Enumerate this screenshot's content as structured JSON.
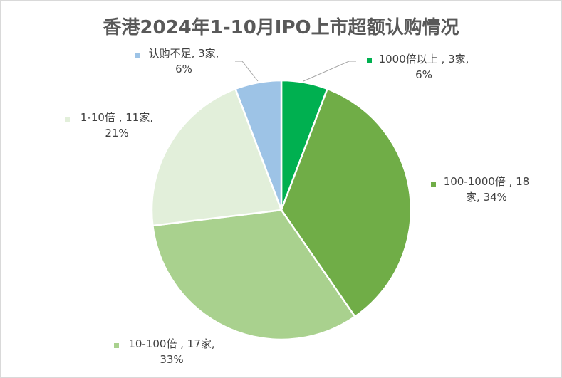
{
  "chart_data": {
    "type": "pie",
    "title": "香港2024年1-10月IPO上市超额认购情况",
    "slices": [
      {
        "name": "1000倍以上",
        "count_label": "3家",
        "value": 3,
        "percent_label": "6%",
        "color": "#00b050"
      },
      {
        "name": "100-1000倍",
        "count_label": "18家",
        "value": 18,
        "percent_label": "34%",
        "color": "#70ad47"
      },
      {
        "name": "10-100倍",
        "count_label": "17家",
        "value": 17,
        "percent_label": "33%",
        "color": "#a9d18e"
      },
      {
        "name": "1-10倍",
        "count_label": "11家",
        "value": 11,
        "percent_label": "21%",
        "color": "#e2efda"
      },
      {
        "name": "认购不足",
        "count_label": "3家",
        "value": 3,
        "percent_label": "6%",
        "color": "#9dc3e6"
      }
    ],
    "labels": [
      {
        "line1": "1000倍以上 , 3家,",
        "line2": "6%"
      },
      {
        "line1": "100-1000倍 , 18",
        "line2": "家, 34%"
      },
      {
        "line1": "10-100倍 , 17家,",
        "line2": "33%"
      },
      {
        "line1": "1-10倍 , 11家,",
        "line2": "21%"
      },
      {
        "line1": "认购不足, 3家,",
        "line2": "6%"
      }
    ]
  }
}
